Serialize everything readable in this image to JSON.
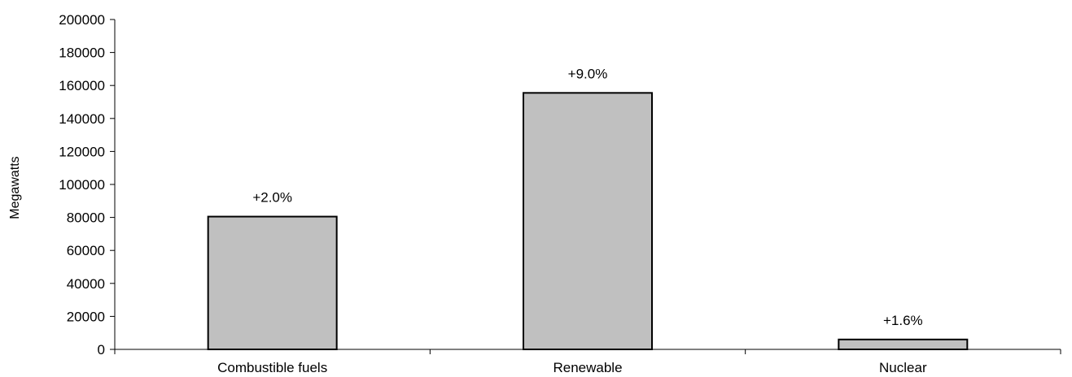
{
  "chart_data": {
    "type": "bar",
    "title": "",
    "xlabel": "",
    "ylabel": "Megawatts",
    "ylim": [
      0,
      200000
    ],
    "yticks": [
      0,
      20000,
      40000,
      60000,
      80000,
      100000,
      120000,
      140000,
      160000,
      180000,
      200000
    ],
    "grid": false,
    "legend": "none",
    "categories": [
      "Combustible fuels",
      "Renewable",
      "Nuclear"
    ],
    "values": [
      80500,
      155500,
      6000
    ],
    "data_labels": [
      "+2.0%",
      "+9.0%",
      "+1.6%"
    ],
    "colors": {
      "bar_fill": "#c0c0c0",
      "bar_stroke": "#000000",
      "axis": "#000000",
      "text": "#000000"
    }
  }
}
